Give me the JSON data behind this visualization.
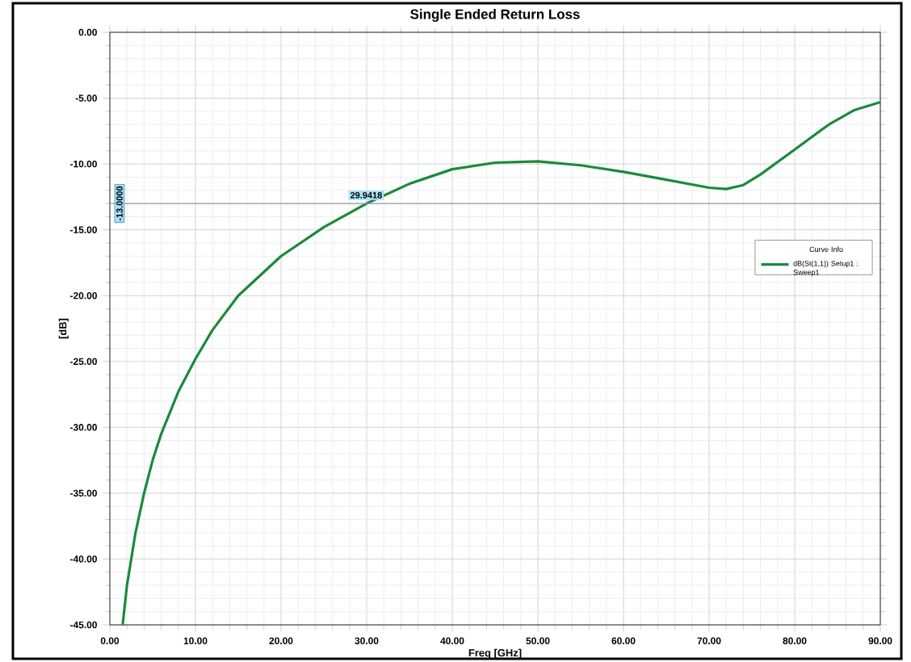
{
  "chart_data": {
    "type": "line",
    "title": "Single Ended Return Loss",
    "xlabel": "Freq [GHz]",
    "ylabel": "[dB]",
    "legend_title": "Curve Info",
    "series": [
      {
        "name": "dB(St(1,1)) Setup1 : Sweep1",
        "color": "#1a8a3c",
        "x": [
          1.5,
          2,
          3,
          4,
          5,
          6,
          8,
          10,
          12,
          15,
          20,
          25,
          30,
          35,
          40,
          45,
          50,
          55,
          60,
          65,
          70,
          72,
          74,
          76,
          80,
          84,
          87,
          90
        ],
        "values": [
          -45,
          -42,
          -38,
          -35,
          -32.5,
          -30.5,
          -27.3,
          -24.8,
          -22.6,
          -20,
          -17,
          -14.8,
          -13,
          -11.5,
          -10.4,
          -9.9,
          -9.8,
          -10.1,
          -10.6,
          -11.2,
          -11.8,
          -11.9,
          -11.6,
          -10.8,
          -8.9,
          -7,
          -5.9,
          -5.3
        ]
      }
    ],
    "xlim": [
      0,
      90
    ],
    "ylim": [
      -45,
      0
    ],
    "xticks": [
      {
        "value": 0,
        "label": "0.00"
      },
      {
        "value": 10,
        "label": "10.00"
      },
      {
        "value": 20,
        "label": "20.00"
      },
      {
        "value": 30,
        "label": "30.00"
      },
      {
        "value": 40,
        "label": "40.00"
      },
      {
        "value": 50,
        "label": "50.00"
      },
      {
        "value": 60,
        "label": "60.00"
      },
      {
        "value": 70,
        "label": "70.00"
      },
      {
        "value": 80,
        "label": "80.00"
      },
      {
        "value": 90,
        "label": "90.00"
      }
    ],
    "yticks": [
      {
        "value": -45,
        "label": "-45.00"
      },
      {
        "value": -40,
        "label": "-40.00"
      },
      {
        "value": -35,
        "label": "-35.00"
      },
      {
        "value": -30,
        "label": "-30.00"
      },
      {
        "value": -25,
        "label": "-25.00"
      },
      {
        "value": -20,
        "label": "-20.00"
      },
      {
        "value": -15,
        "label": "-15.00"
      },
      {
        "value": -10,
        "label": "-10.00"
      },
      {
        "value": -5,
        "label": "-5.00"
      },
      {
        "value": 0,
        "label": "0.00"
      }
    ],
    "ref_lines": [
      {
        "axis": "y",
        "value": -13,
        "label": "-13.0000",
        "color": "#9a9a9a"
      }
    ],
    "annotations": [
      {
        "text": "29.9418",
        "x": 29.9418,
        "y": -13
      }
    ],
    "grid": true,
    "legend": "right",
    "marker": "none",
    "line_style": "solid"
  }
}
